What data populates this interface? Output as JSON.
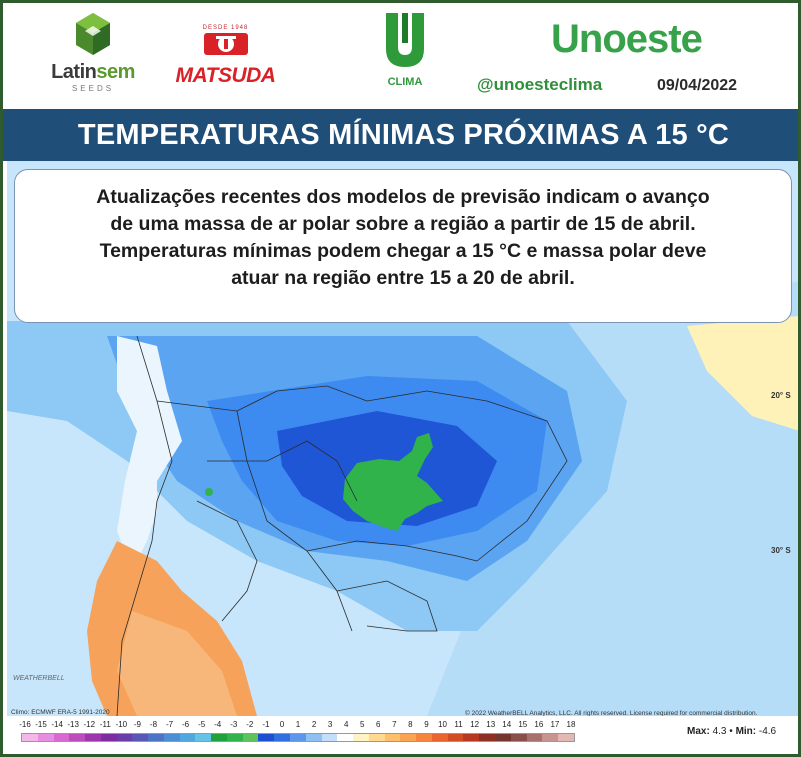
{
  "header": {
    "latinsem": {
      "word_a": "Latin",
      "word_b": "sem",
      "sub": "SEEDS"
    },
    "matsuda": {
      "small": "DESDE 1948",
      "word": "MATSUDA"
    },
    "uclima": {
      "word": "CLIMA"
    },
    "unoeste": "Unoeste",
    "handle": "@unoesteclima",
    "date": "09/04/2022"
  },
  "title": "TEMPERATURAS MÍNIMAS PRÓXIMAS A 15 °C",
  "message": [
    "Atualizações recentes dos modelos de previsão indicam o avanço",
    "de uma massa de ar polar sobre a região a partir de 15 de abril.",
    "Temperaturas mínimas podem chegar a 15 °C e massa polar deve",
    "atuar na região entre 15 a 20 de abril."
  ],
  "map": {
    "lat_labels": [
      "20° S",
      "30° S"
    ],
    "climo_credit": "Climo: ECMWF ERA-5 1991-2020",
    "copyright": "© 2022 WeatherBELL Analytics, LLC. All rights reserved. License required for commercial distribution.",
    "wb_logo": "WEATHERBELL",
    "colors": {
      "deep_blue": "#1f56d6",
      "mid_blue": "#3d8bf0",
      "light_blue": "#8ec9f5",
      "pale_blue": "#c7e6fb",
      "green_anomaly": "#2fb34a",
      "orange": "#f6a25a",
      "yellow": "#fff2b8"
    }
  },
  "legend": {
    "ticks": [
      "-16",
      "-15",
      "-14",
      "-13",
      "-12",
      "-11",
      "-10",
      "-9",
      "-8",
      "-7",
      "-6",
      "-5",
      "-4",
      "-3",
      "-2",
      "-1",
      "0",
      "1",
      "2",
      "3",
      "4",
      "5",
      "6",
      "7",
      "8",
      "9",
      "10",
      "11",
      "12",
      "13",
      "14",
      "15",
      "16",
      "17",
      "18"
    ],
    "colors": [
      "#f3b7ea",
      "#e88ee0",
      "#d968d2",
      "#c04bbf",
      "#9d35ad",
      "#7d2d9f",
      "#6a3ea8",
      "#5a56b8",
      "#4d73c6",
      "#4d8fd5",
      "#4fa9df",
      "#64c4e8",
      "#1fa13c",
      "#2fb34a",
      "#5cc45a",
      "#1e4fd0",
      "#2f6fe0",
      "#5c97ec",
      "#8fbff3",
      "#c3def8",
      "#ffffff",
      "#fff3c4",
      "#ffd98c",
      "#ffbe6a",
      "#fca352",
      "#f5853d",
      "#e9652d",
      "#d34d24",
      "#b73a20",
      "#8f2f24",
      "#75362f",
      "#8a4f4a",
      "#a8716d",
      "#c7948f",
      "#e2b8b3"
    ],
    "max_label": "Max:",
    "max_value": "4.3",
    "separator": "•",
    "min_label": "Min:",
    "min_value": "-4.6"
  }
}
